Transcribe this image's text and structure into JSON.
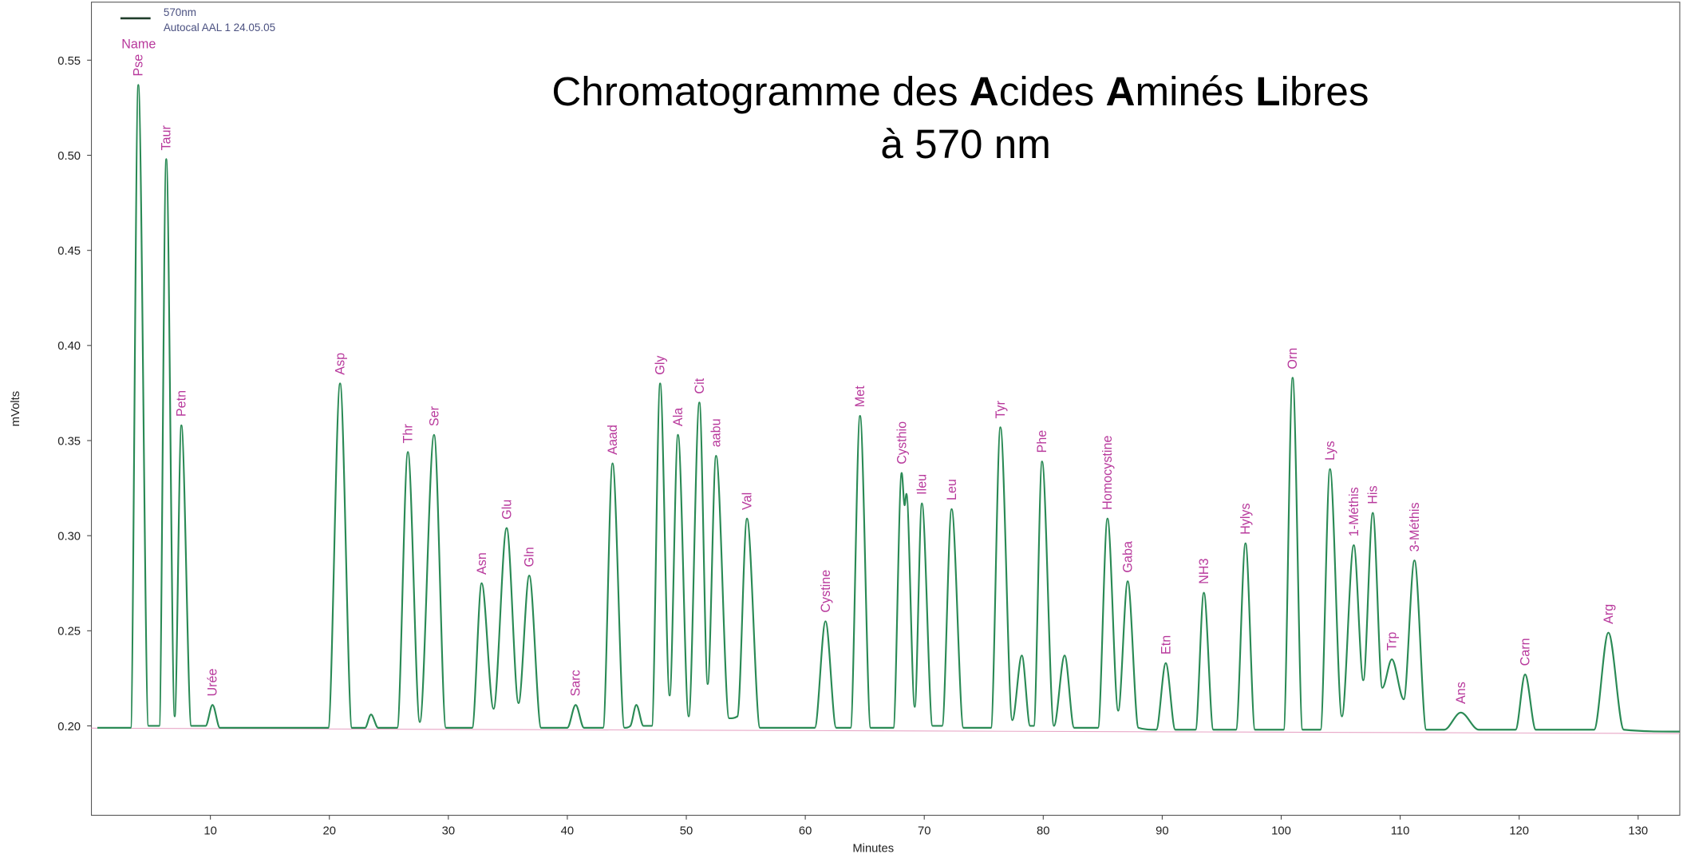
{
  "chart_data": {
    "type": "line",
    "title": [
      {
        "text": "Chromatogramme des ",
        "bold": false
      },
      {
        "text": "A",
        "bold": true
      },
      {
        "text": "cides ",
        "bold": false
      },
      {
        "text": "A",
        "bold": true
      },
      {
        "text": "minés ",
        "bold": false
      },
      {
        "text": "L",
        "bold": true
      },
      {
        "text": "ibres",
        "bold": false
      }
    ],
    "subtitle": "à 570 nm",
    "xlabel": "Minutes",
    "ylabel": "mVolts",
    "legend_note": "Autocal  AAL 1 24.05.05",
    "label_heading": "Name",
    "label_color": "#b8399c",
    "xlim": [
      0,
      133.5
    ],
    "xticks": [
      10,
      20,
      30,
      40,
      50,
      60,
      70,
      80,
      90,
      100,
      110,
      120,
      130
    ],
    "ylim": [
      0.153,
      0.5805
    ],
    "yticks": [
      {
        "value": 0.2,
        "label": "0.20"
      },
      0.25,
      {
        "value": 0.3,
        "label": "0.30"
      },
      0.35,
      {
        "value": 0.4,
        "label": "0.40"
      },
      0.45,
      {
        "value": 0.5,
        "label": "0.50"
      },
      0.55
    ],
    "grid": false,
    "x": [
      0.5,
      3.3,
      3.94,
      4.8,
      5.7,
      6.29,
      7.0,
      7.56,
      8.4,
      9.6,
      10.18,
      10.8,
      19.9,
      20.9,
      21.9,
      23.0,
      23.5,
      24.1,
      25.7,
      26.6,
      27.6,
      28.8,
      29.8,
      32.0,
      32.8,
      33.8,
      34.9,
      35.9,
      36.8,
      37.8,
      40.0,
      40.7,
      41.4,
      43.0,
      43.8,
      44.8,
      45.3,
      45.8,
      46.4,
      47.1,
      47.8,
      48.6,
      49.3,
      50.2,
      51.1,
      51.8,
      52.5,
      53.6,
      54.3,
      55.1,
      56.2,
      60.8,
      61.7,
      62.6,
      63.8,
      64.6,
      65.5,
      67.4,
      68.1,
      68.35,
      68.5,
      69.2,
      69.8,
      70.7,
      71.5,
      72.3,
      73.3,
      75.6,
      76.4,
      77.4,
      78.2,
      78.9,
      79.2,
      79.9,
      80.9,
      81.8,
      82.6,
      84.6,
      85.4,
      86.3,
      87.1,
      88.0,
      89.5,
      90.3,
      91.1,
      92.8,
      93.5,
      94.3,
      96.2,
      97.0,
      97.8,
      100.2,
      100.96,
      101.8,
      103.3,
      104.1,
      105.1,
      106.1,
      106.9,
      107.7,
      108.5,
      109.3,
      110.3,
      111.2,
      112.2,
      113.7,
      115.1,
      116.6,
      119.7,
      120.5,
      121.4,
      126.3,
      127.5,
      128.8,
      133.5
    ],
    "series": [
      {
        "name": "570nm",
        "color": "#2a8a55",
        "values": [
          0.199,
          0.199,
          0.537,
          0.2,
          0.2,
          0.498,
          0.205,
          0.358,
          0.2,
          0.2,
          0.211,
          0.199,
          0.199,
          0.38,
          0.199,
          0.199,
          0.206,
          0.199,
          0.199,
          0.344,
          0.202,
          0.353,
          0.199,
          0.199,
          0.275,
          0.209,
          0.304,
          0.212,
          0.279,
          0.199,
          0.199,
          0.211,
          0.199,
          0.199,
          0.338,
          0.199,
          0.2,
          0.211,
          0.2,
          0.2,
          0.38,
          0.216,
          0.353,
          0.205,
          0.37,
          0.222,
          0.342,
          0.204,
          0.205,
          0.309,
          0.199,
          0.199,
          0.255,
          0.199,
          0.199,
          0.363,
          0.199,
          0.199,
          0.333,
          0.316,
          0.322,
          0.21,
          0.317,
          0.2,
          0.2,
          0.314,
          0.199,
          0.199,
          0.357,
          0.203,
          0.237,
          0.2,
          0.2,
          0.339,
          0.2,
          0.237,
          0.199,
          0.199,
          0.309,
          0.208,
          0.276,
          0.199,
          0.198,
          0.233,
          0.198,
          0.198,
          0.27,
          0.198,
          0.198,
          0.296,
          0.198,
          0.198,
          0.383,
          0.198,
          0.198,
          0.335,
          0.205,
          0.295,
          0.224,
          0.312,
          0.22,
          0.235,
          0.214,
          0.287,
          0.198,
          0.198,
          0.207,
          0.198,
          0.198,
          0.227,
          0.198,
          0.198,
          0.249,
          0.198,
          0.197
        ]
      }
    ],
    "point_labels": [
      null,
      null,
      "Pse",
      null,
      null,
      "Taur",
      null,
      "Petn",
      null,
      null,
      "Urée",
      null,
      null,
      "Asp",
      null,
      null,
      null,
      null,
      null,
      "Thr",
      null,
      "Ser",
      null,
      null,
      "Asn",
      null,
      "Glu",
      null,
      "Gln",
      null,
      null,
      "Sarc",
      null,
      null,
      "Aaad",
      null,
      null,
      null,
      null,
      null,
      "Gly",
      null,
      "Ala",
      null,
      "Cit",
      null,
      "aabu",
      null,
      null,
      "Val",
      null,
      null,
      "Cystine",
      null,
      null,
      "Met",
      null,
      null,
      "Cysthio",
      null,
      null,
      null,
      "Ileu",
      null,
      null,
      "Leu",
      null,
      null,
      "Tyr",
      null,
      null,
      null,
      null,
      "Phe",
      null,
      null,
      null,
      null,
      "Homocystine",
      null,
      "Gaba",
      null,
      null,
      "Etn",
      null,
      null,
      "NH3",
      null,
      null,
      "Hylys",
      null,
      null,
      "Orn",
      null,
      null,
      "Lys",
      null,
      "1-Méthis",
      null,
      "His",
      null,
      "Trp",
      null,
      "3-Méthis",
      null,
      null,
      "Ans",
      null,
      null,
      "Carn",
      null,
      null,
      "Arg",
      null,
      null
    ]
  }
}
